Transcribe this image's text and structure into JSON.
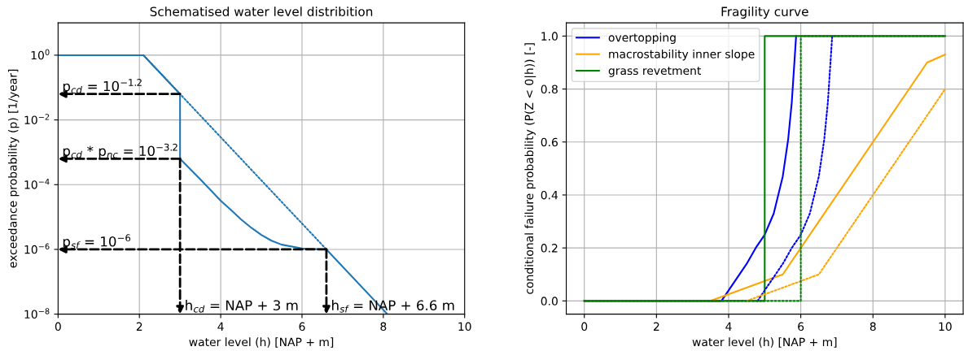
{
  "chart_data": [
    {
      "type": "line",
      "title": "Schematised water level distribition",
      "xlabel": "water level (h) [NAP + m]",
      "ylabel": "exceedance probability (p) [1/year]",
      "log": "y",
      "grid": true,
      "xlim": [
        0,
        10
      ],
      "xticks": [
        0,
        2,
        4,
        6,
        8,
        10
      ],
      "ylim": [
        1e-08,
        10
      ],
      "yticks": [
        {
          "value": 1,
          "label": "10$^{0}$"
        },
        {
          "value": 0.01,
          "label": "10$^{−2}$"
        },
        {
          "value": 0.0001,
          "label": "10$^{−4}$"
        },
        {
          "value": 1e-06,
          "label": "10$^{−6}$"
        },
        {
          "value": 1e-08,
          "label": "10$^{−8}$"
        }
      ],
      "series": [
        {
          "color": "#1f77b4",
          "line_style": "solid",
          "x": [
            0,
            2.1,
            3,
            3,
            3.5,
            4,
            4.25,
            4.5,
            4.75,
            5,
            5.25,
            5.5,
            6,
            6.6,
            8.1
          ],
          "values": [
            1,
            1,
            0.0631,
            0.000631,
            0.000145,
            3.2e-05,
            1.66e-05,
            8.5e-06,
            4.7e-06,
            2.8e-06,
            1.86e-06,
            1.4e-06,
            1.07e-06,
            1e-06,
            1e-08
          ]
        },
        {
          "color": "#1f77b4",
          "line_style": "dotted",
          "x": [
            2.1,
            6.6
          ],
          "values": [
            1,
            1e-06
          ]
        }
      ],
      "annotations": [
        {
          "text": "p$_{cd}$ = 10$^{−1.2}$",
          "x": 0.1,
          "y": 0.0631
        },
        {
          "text": "p$_{cd}$ * p$_{nc}$ = 10$^{−3.2}$",
          "x": 0.1,
          "y": 0.000631
        },
        {
          "text": "p$_{sf}$ = 10$^{−6}$",
          "x": 0.1,
          "y": 1e-06
        },
        {
          "text": "h$_{cd}$ = NAP + 3 m",
          "x": 3,
          "y": 0.000631
        },
        {
          "text": "h$_{sf}$ = NAP + 6.6 m",
          "x": 6.6,
          "y": 1e-06
        }
      ]
    },
    {
      "type": "line",
      "title": "Fragility curve",
      "xlabel": "water level (h) [NAP + m]",
      "ylabel": "conditional failure probability (P(Z < 0|h)) [-]",
      "grid": true,
      "legend": "top left",
      "xlim": [
        -0.5,
        10.5
      ],
      "xticks": [
        0,
        2,
        4,
        6,
        8,
        10
      ],
      "ylim": [
        -0.05,
        1.05
      ],
      "yticks": [
        {
          "value": 0,
          "label": "0.0"
        },
        {
          "value": 0.2,
          "label": "0.2"
        },
        {
          "value": 0.4,
          "label": "0.4"
        },
        {
          "value": 0.6,
          "label": "0.6"
        },
        {
          "value": 0.8,
          "label": "0.8"
        },
        {
          "value": 1,
          "label": "1.0"
        }
      ],
      "series": [
        {
          "name": "overtopping",
          "color": "#0000ff",
          "line_style": "solid",
          "x": [
            0,
            3.8,
            4,
            4.5,
            4.75,
            5,
            5.25,
            5.5,
            5.65,
            5.75,
            5.87
          ],
          "values": [
            0,
            0,
            0.04,
            0.14,
            0.2,
            0.25,
            0.33,
            0.47,
            0.61,
            0.75,
            1.0
          ]
        },
        {
          "name": "macrostability inner slope",
          "color": "#ffa500",
          "line_style": "solid",
          "x": [
            0,
            3.5,
            5.5,
            9.5,
            10
          ],
          "values": [
            0,
            0,
            0.1,
            0.9,
            0.93
          ]
        },
        {
          "name": "grass revetment",
          "color": "#008000",
          "line_style": "solid",
          "x": [
            0,
            5,
            5,
            10
          ],
          "values": [
            0,
            0,
            1,
            1
          ]
        },
        {
          "color": "#0000ff",
          "line_style": "dotted",
          "x": [
            4.8,
            5,
            5.5,
            5.75,
            6,
            6.25,
            6.5,
            6.65,
            6.75,
            6.87
          ],
          "values": [
            0,
            0.04,
            0.14,
            0.2,
            0.25,
            0.33,
            0.47,
            0.61,
            0.75,
            1.0
          ]
        },
        {
          "color": "#ffa500",
          "line_style": "dotted",
          "x": [
            4.5,
            6.5,
            10
          ],
          "values": [
            0,
            0.1,
            0.8
          ]
        },
        {
          "color": "#008000",
          "line_style": "dotted",
          "x": [
            0,
            6,
            6,
            10
          ],
          "values": [
            0,
            0,
            1,
            1
          ]
        }
      ]
    }
  ]
}
